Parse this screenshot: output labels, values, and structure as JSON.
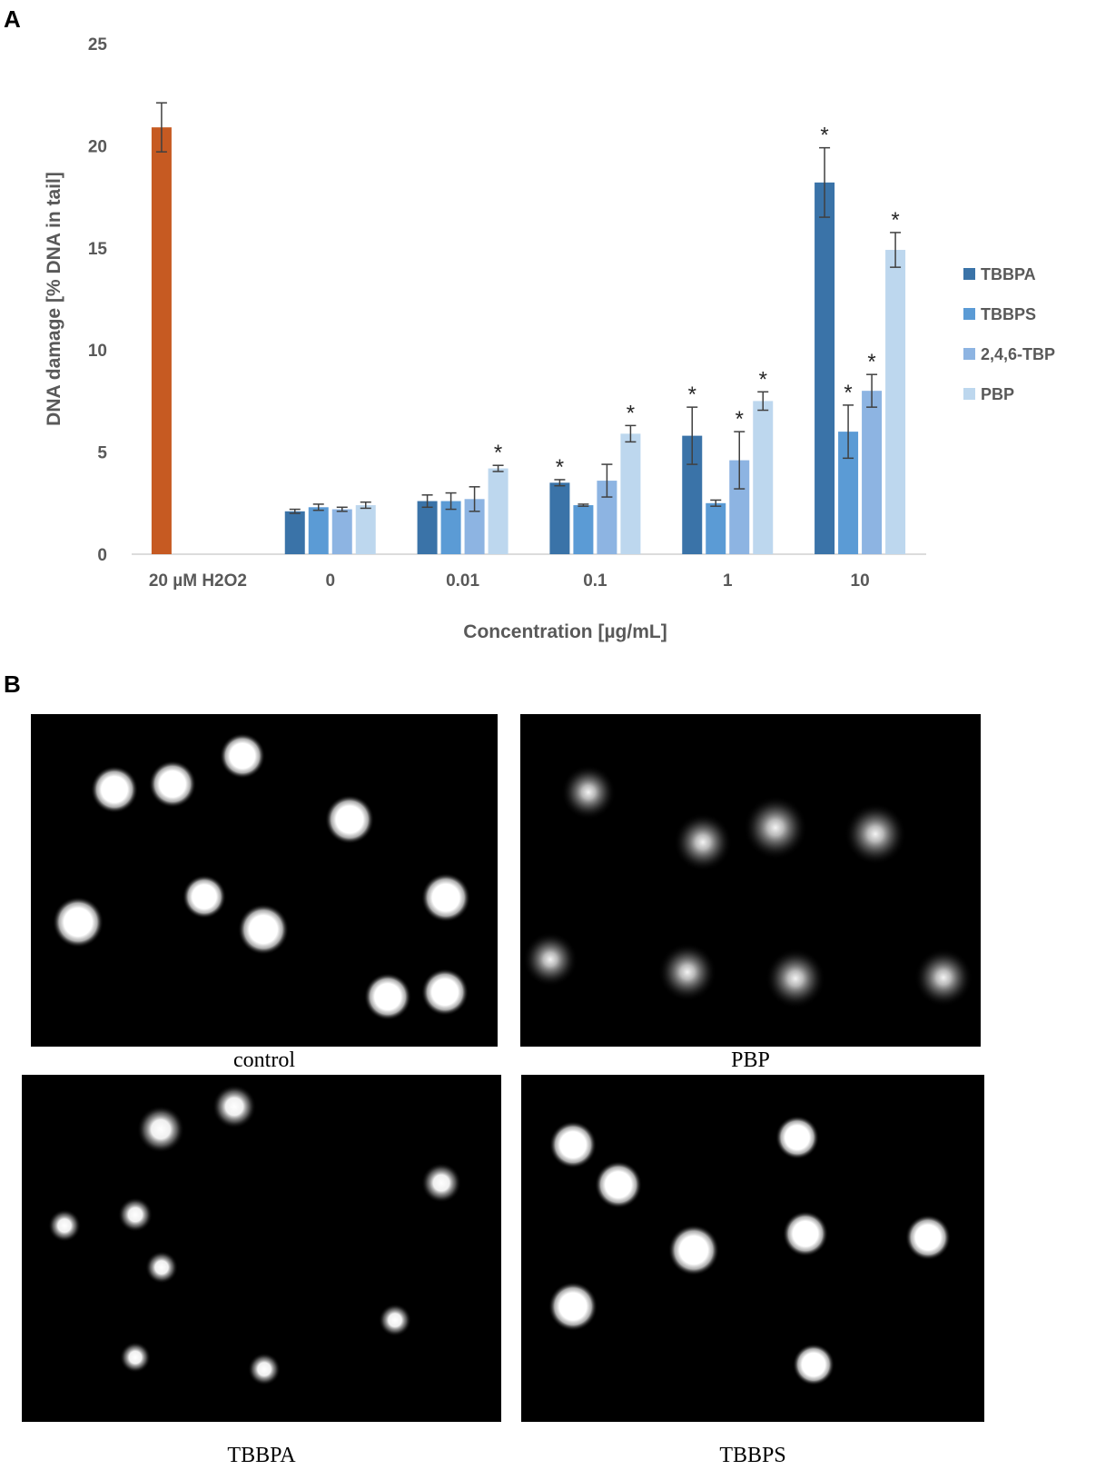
{
  "panels": {
    "a_label": "A",
    "b_label": "B"
  },
  "chart_data": {
    "type": "bar",
    "categories": [
      "20 µM H2O2",
      "0",
      "0.01",
      "0.1",
      "1",
      "10"
    ],
    "xlabel": "Concentration [µg/mL]",
    "ylabel": "DNA damage [% DNA in tail]",
    "ylim": [
      0,
      25
    ],
    "yticks": [
      0,
      5,
      10,
      15,
      20,
      25
    ],
    "grid": false,
    "legend_position": "right",
    "significance_marker": "*",
    "control": {
      "category": "20 µM H2O2",
      "value": 20.9,
      "error": 1.2,
      "color": "#c65a22"
    },
    "series": [
      {
        "name": "TBBPA",
        "color": "#3a73a8",
        "values": [
          null,
          2.1,
          2.6,
          3.5,
          5.8,
          18.2
        ],
        "errors": [
          null,
          0.1,
          0.3,
          0.15,
          1.4,
          1.7
        ],
        "significant": [
          false,
          false,
          false,
          true,
          true,
          true
        ]
      },
      {
        "name": "TBBPS",
        "color": "#5b9bd5",
        "values": [
          null,
          2.3,
          2.6,
          2.4,
          2.5,
          6.0
        ],
        "errors": [
          null,
          0.15,
          0.4,
          0.05,
          0.15,
          1.3
        ],
        "significant": [
          false,
          false,
          false,
          false,
          false,
          true
        ]
      },
      {
        "name": "2,4,6-TBP",
        "color": "#8db4e2",
        "values": [
          null,
          2.2,
          2.7,
          3.6,
          4.6,
          8.0
        ],
        "errors": [
          null,
          0.1,
          0.6,
          0.8,
          1.4,
          0.8
        ],
        "significant": [
          false,
          false,
          false,
          false,
          true,
          true
        ]
      },
      {
        "name": "PBP",
        "color": "#bdd7ee",
        "values": [
          null,
          2.4,
          4.2,
          5.9,
          7.5,
          14.9
        ],
        "errors": [
          null,
          0.15,
          0.15,
          0.4,
          0.45,
          0.85
        ],
        "significant": [
          false,
          false,
          true,
          true,
          true,
          true
        ]
      }
    ]
  },
  "micrographs": [
    {
      "caption": "control",
      "nuclei": "bright compact round nuclei"
    },
    {
      "caption": "PBP",
      "nuclei": "dim diffuse nuclei"
    },
    {
      "caption": "TBBPA",
      "nuclei": "small bright nuclei with halos"
    },
    {
      "caption": "TBBPS",
      "nuclei": "bright compact round nuclei"
    }
  ]
}
